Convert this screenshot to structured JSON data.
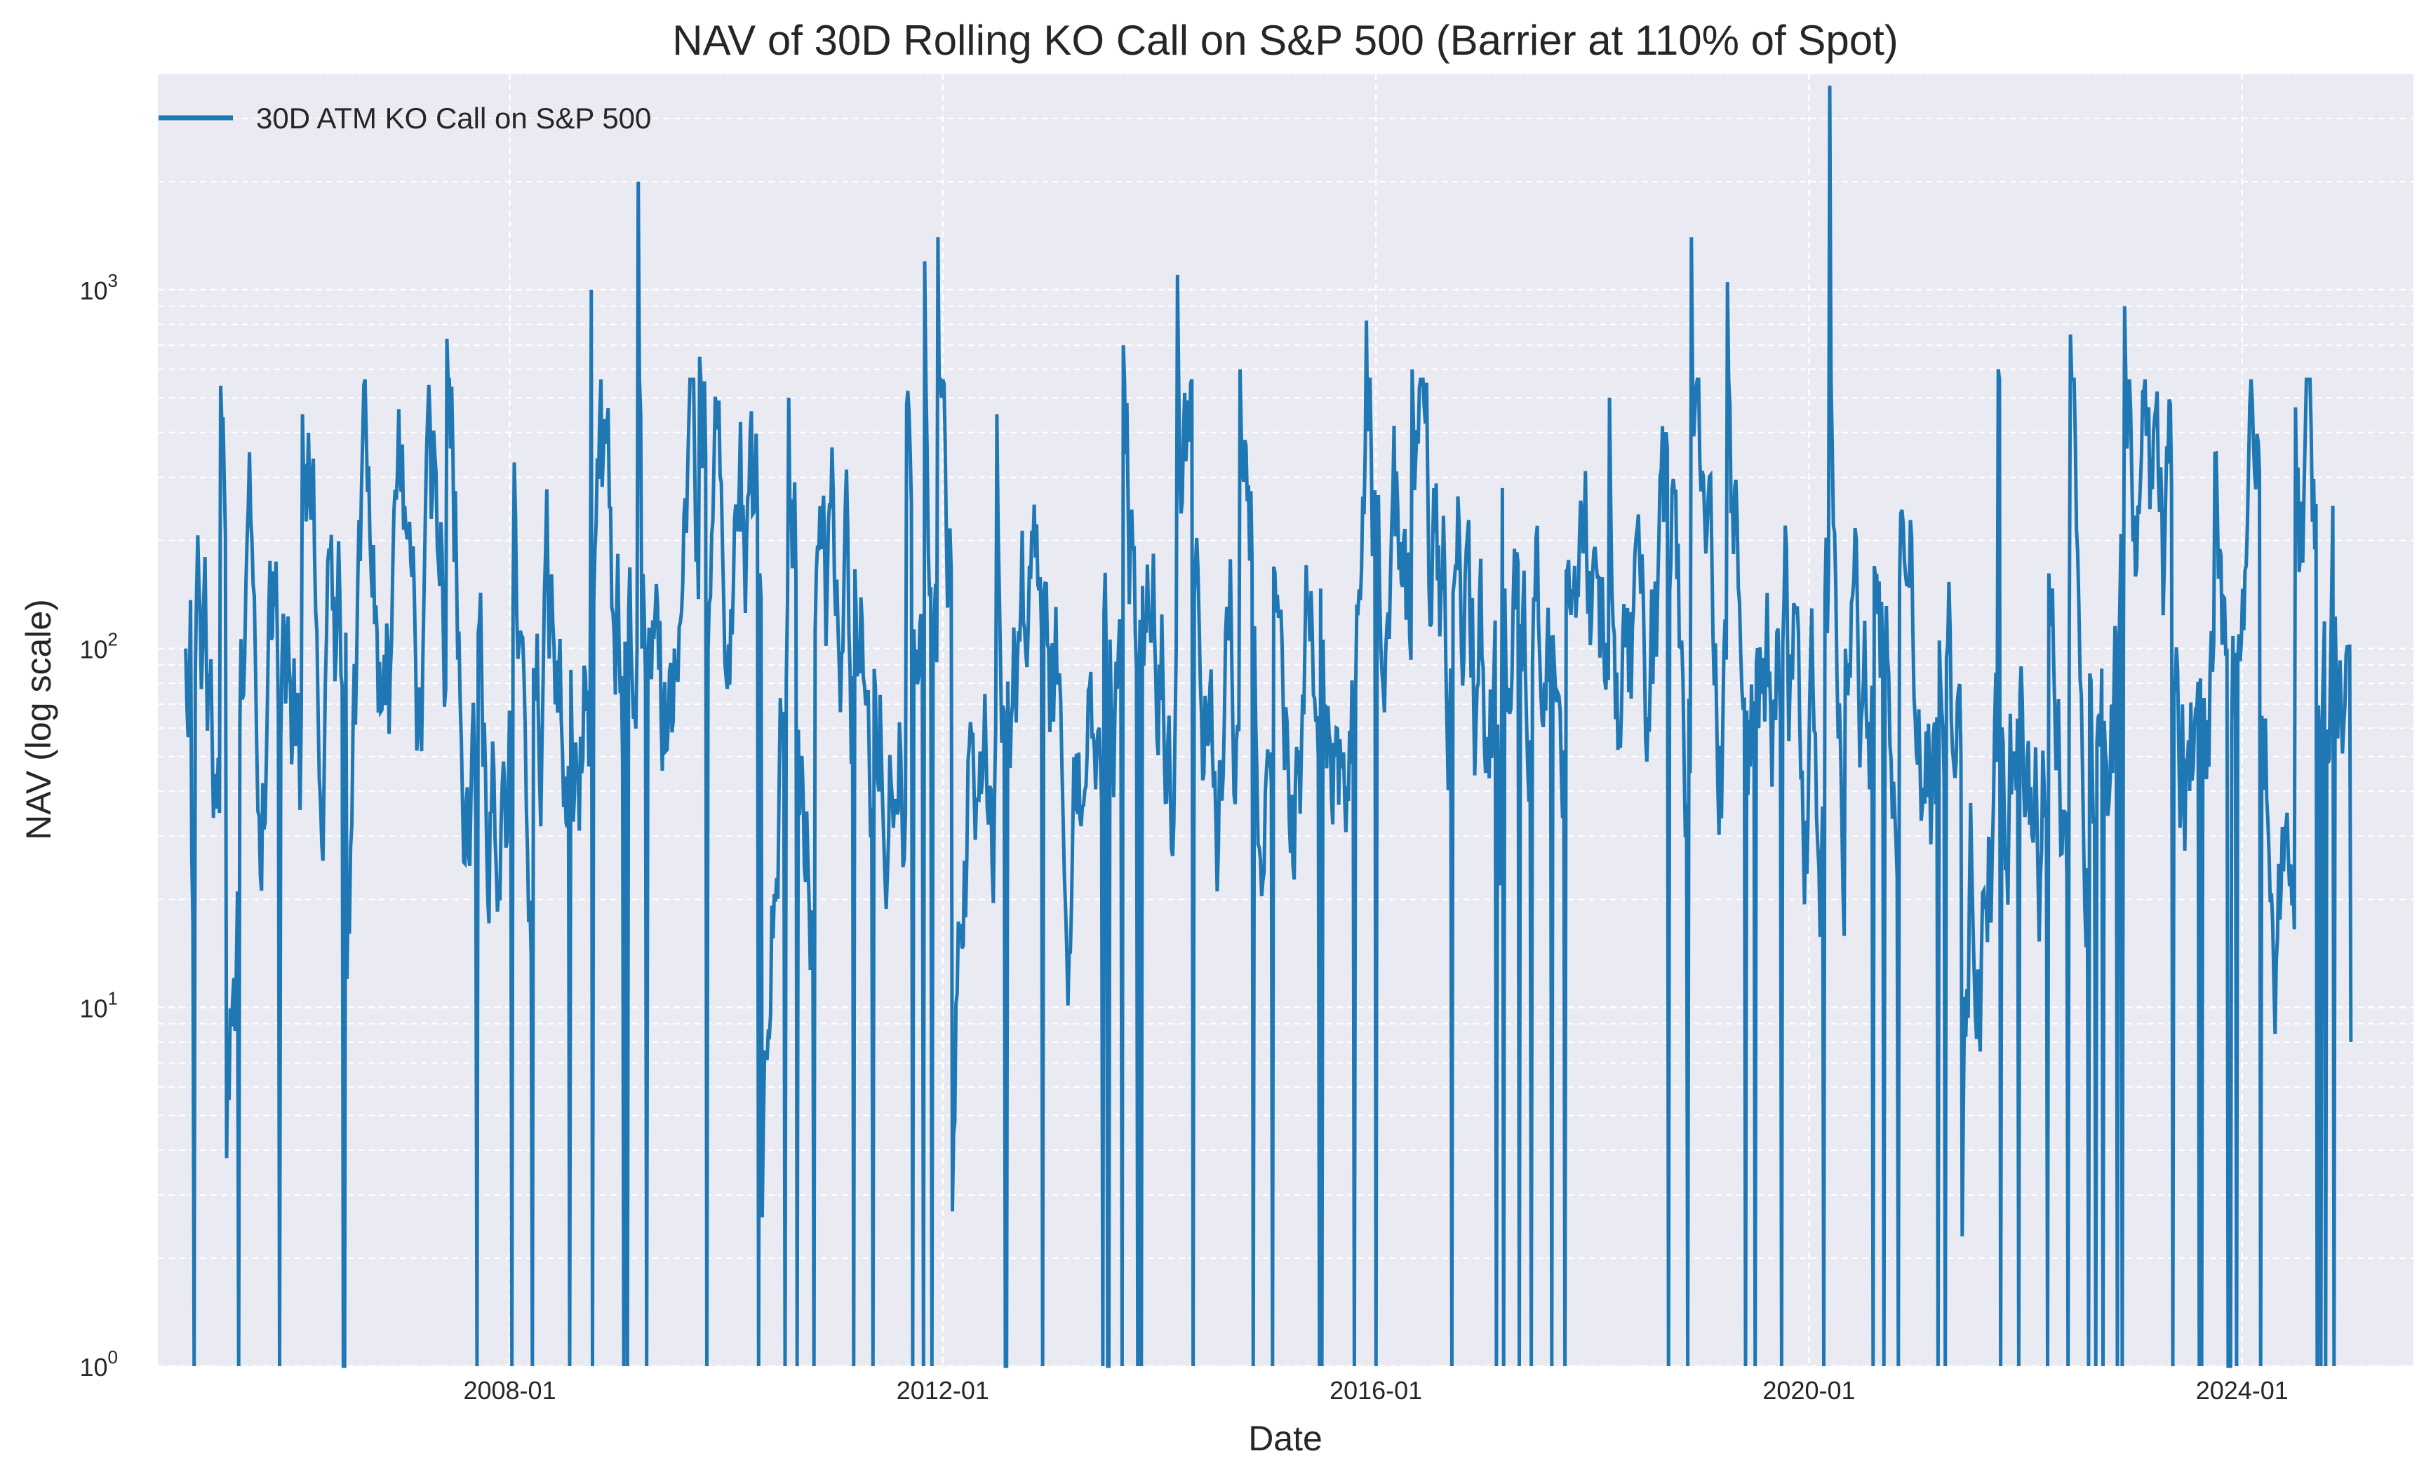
{
  "chart_data": {
    "type": "line",
    "title": "NAV of 30D Rolling KO Call on S&P 500 (Barrier at 110% of Spot)",
    "xlabel": "Date",
    "ylabel": "NAV (log scale)",
    "yscale": "log",
    "ylim": [
      1,
      4000
    ],
    "xlim": [
      "2004-10-01",
      "2025-08-01"
    ],
    "x_ticks": [
      "2008-01",
      "2012-01",
      "2016-01",
      "2020-01",
      "2024-01"
    ],
    "y_ticks": [
      {
        "value": 1,
        "base": "10",
        "exp": "0"
      },
      {
        "value": 10,
        "base": "10",
        "exp": "1"
      },
      {
        "value": 100,
        "base": "10",
        "exp": "2"
      },
      {
        "value": 1000,
        "base": "10",
        "exp": "3"
      }
    ],
    "grid": true,
    "legend": {
      "position": "top-left",
      "entries": [
        "30D ATM KO Call on S&P 500"
      ]
    },
    "colors": {
      "series": "#1f77b4",
      "background": "#eaeaf2",
      "grid": "#ffffff"
    },
    "series": [
      {
        "name": "30D ATM KO Call on S&P 500",
        "x_start": "2005-01-03",
        "x_end": "2025-01-02",
        "num_points": 1800,
        "anchors": [
          {
            "x": "2005-01-03",
            "y": 100
          },
          {
            "x": "2005-01-25",
            "y": 27
          },
          {
            "x": "2005-03-10",
            "y": 180
          },
          {
            "x": "2005-05-01",
            "y": 540
          },
          {
            "x": "2005-05-20",
            "y": 3.8
          },
          {
            "x": "2006-02-01",
            "y": 450
          },
          {
            "x": "2006-07-01",
            "y": 12
          },
          {
            "x": "2007-06-01",
            "y": 730
          },
          {
            "x": "2008-01-15",
            "y": 330
          },
          {
            "x": "2008-10-01",
            "y": 1000
          },
          {
            "x": "2009-03-10",
            "y": 2000
          },
          {
            "x": "2009-03-20",
            "y": 100
          },
          {
            "x": "2009-07-10",
            "y": 100
          },
          {
            "x": "2009-10-01",
            "y": 650
          },
          {
            "x": "2010-05-01",
            "y": 2.6
          },
          {
            "x": "2010-08-01",
            "y": 500
          },
          {
            "x": "2011-09-01",
            "y": 480
          },
          {
            "x": "2011-11-01",
            "y": 1200
          },
          {
            "x": "2011-12-15",
            "y": 1400
          },
          {
            "x": "2012-02-01",
            "y": 2.7
          },
          {
            "x": "2012-07-01",
            "y": 450
          },
          {
            "x": "2013-09-01",
            "y": 700
          },
          {
            "x": "2014-03-01",
            "y": 1100
          },
          {
            "x": "2014-10-01",
            "y": 600
          },
          {
            "x": "2015-12-01",
            "y": 820
          },
          {
            "x": "2016-05-01",
            "y": 600
          },
          {
            "x": "2017-03-01",
            "y": 280
          },
          {
            "x": "2018-03-01",
            "y": 500
          },
          {
            "x": "2018-12-01",
            "y": 1400
          },
          {
            "x": "2019-04-01",
            "y": 1050
          },
          {
            "x": "2020-03-10",
            "y": 3700
          },
          {
            "x": "2020-05-01",
            "y": 100
          },
          {
            "x": "2021-06-01",
            "y": 2.3
          },
          {
            "x": "2021-10-01",
            "y": 600
          },
          {
            "x": "2022-06-01",
            "y": 750
          },
          {
            "x": "2022-12-01",
            "y": 900
          },
          {
            "x": "2023-10-01",
            "y": 350
          },
          {
            "x": "2024-07-01",
            "y": 470
          },
          {
            "x": "2024-11-01",
            "y": 250
          },
          {
            "x": "2025-01-02",
            "y": 8
          }
        ]
      }
    ]
  }
}
